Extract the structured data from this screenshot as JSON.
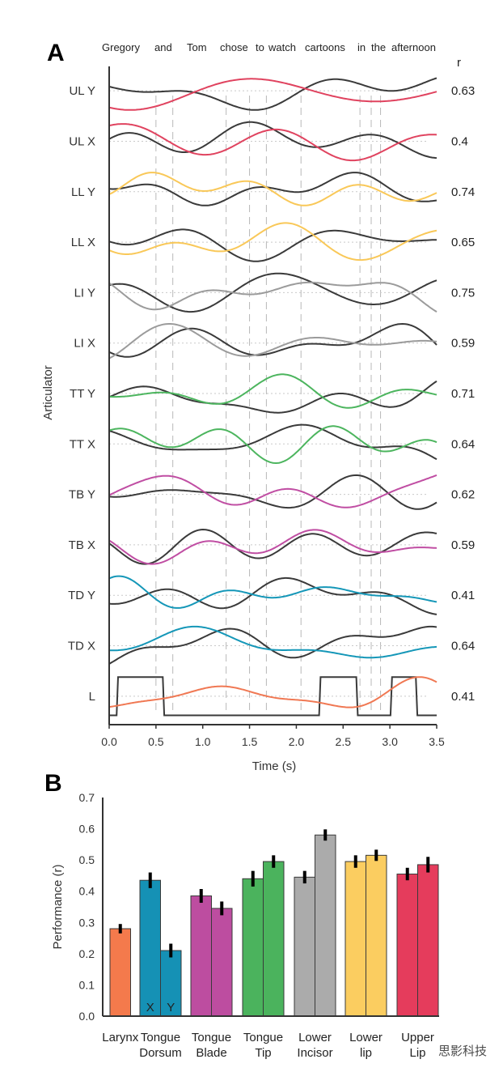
{
  "panel_a": {
    "letter": "A",
    "words": [
      "Gregory",
      "and",
      "Tom",
      "chose",
      "to",
      "watch",
      "cartoons",
      "in",
      "the",
      "afternoon"
    ],
    "r_header": "r",
    "ylabel": "Articulator",
    "xlabel": "Time (s)",
    "xticks": [
      "0.0",
      "0.5",
      "1.0",
      "1.5",
      "2.0",
      "2.5",
      "3.0",
      "3.5"
    ]
  },
  "panel_b": {
    "letter": "B",
    "ylabel": "Performance (r)",
    "yticks": [
      "0.0",
      "0.1",
      "0.2",
      "0.3",
      "0.4",
      "0.5",
      "0.6",
      "0.7"
    ],
    "categories": [
      {
        "line1": "Larynx",
        "line2": ""
      },
      {
        "line1": "Tongue",
        "line2": "Dorsum"
      },
      {
        "line1": "Tongue",
        "line2": "Blade"
      },
      {
        "line1": "Tongue",
        "line2": "Tip"
      },
      {
        "line1": "Lower",
        "line2": "Incisor"
      },
      {
        "line1": "Lower",
        "line2": "lip"
      },
      {
        "line1": "Upper",
        "line2": "Lip"
      }
    ],
    "bar_text": [
      "X",
      "Y"
    ]
  },
  "watermark": "思影科技",
  "chart_data": [
    {
      "type": "line",
      "xlabel": "Time (s)",
      "ylabel": "Articulator",
      "xlim": [
        0,
        3.5
      ],
      "title": "",
      "articulators": [
        {
          "name": "UL Y",
          "r": "0.63",
          "color": "#e0435f"
        },
        {
          "name": "UL X",
          "r": "0.4",
          "color": "#e0435f"
        },
        {
          "name": "LL Y",
          "r": "0.74",
          "color": "#f9c858"
        },
        {
          "name": "LL X",
          "r": "0.65",
          "color": "#f9c858"
        },
        {
          "name": "LI Y",
          "r": "0.75",
          "color": "#9b9b9b"
        },
        {
          "name": "LI X",
          "r": "0.59",
          "color": "#9b9b9b"
        },
        {
          "name": "TT Y",
          "r": "0.71",
          "color": "#4cb55e"
        },
        {
          "name": "TT X",
          "r": "0.64",
          "color": "#4cb55e"
        },
        {
          "name": "TB Y",
          "r": "0.62",
          "color": "#c04ea3"
        },
        {
          "name": "TB X",
          "r": "0.59",
          "color": "#c04ea3"
        },
        {
          "name": "TD Y",
          "r": "0.41",
          "color": "#1597b8"
        },
        {
          "name": "TD X",
          "r": "0.64",
          "color": "#1597b8"
        },
        {
          "name": "L",
          "r": "0.41",
          "color": "#f07853"
        }
      ],
      "actual_color": "#3a3a3a",
      "word_boundaries_s": [
        0.5,
        0.68,
        1.25,
        1.5,
        1.68,
        2.05,
        2.68,
        2.8,
        2.9
      ]
    },
    {
      "type": "bar",
      "ylabel": "Performance (r)",
      "ylim": [
        0,
        0.7
      ],
      "bars": [
        {
          "category": "Larynx",
          "value": 0.28,
          "err": 0.015,
          "color": "#f47a4c"
        },
        {
          "category": "Tongue Dorsum",
          "label": "X",
          "value": 0.435,
          "err": 0.025,
          "color": "#1591b5"
        },
        {
          "category": "Tongue Dorsum",
          "label": "Y",
          "value": 0.21,
          "err": 0.022,
          "color": "#1591b5"
        },
        {
          "category": "Tongue Blade",
          "value": 0.385,
          "err": 0.022,
          "color": "#bd4da0"
        },
        {
          "category": "Tongue Blade",
          "value": 0.345,
          "err": 0.022,
          "color": "#bd4da0"
        },
        {
          "category": "Tongue Tip",
          "value": 0.44,
          "err": 0.025,
          "color": "#4bb35d"
        },
        {
          "category": "Tongue Tip",
          "value": 0.495,
          "err": 0.02,
          "color": "#4bb35d"
        },
        {
          "category": "Lower Incisor",
          "value": 0.445,
          "err": 0.02,
          "color": "#ababab"
        },
        {
          "category": "Lower Incisor",
          "value": 0.58,
          "err": 0.018,
          "color": "#ababab"
        },
        {
          "category": "Lower lip",
          "value": 0.495,
          "err": 0.02,
          "color": "#fbcd60"
        },
        {
          "category": "Lower lip",
          "value": 0.515,
          "err": 0.018,
          "color": "#fbcd60"
        },
        {
          "category": "Upper Lip",
          "value": 0.455,
          "err": 0.02,
          "color": "#e53c5c"
        },
        {
          "category": "Upper Lip",
          "value": 0.485,
          "err": 0.025,
          "color": "#e53c5c"
        }
      ]
    }
  ]
}
